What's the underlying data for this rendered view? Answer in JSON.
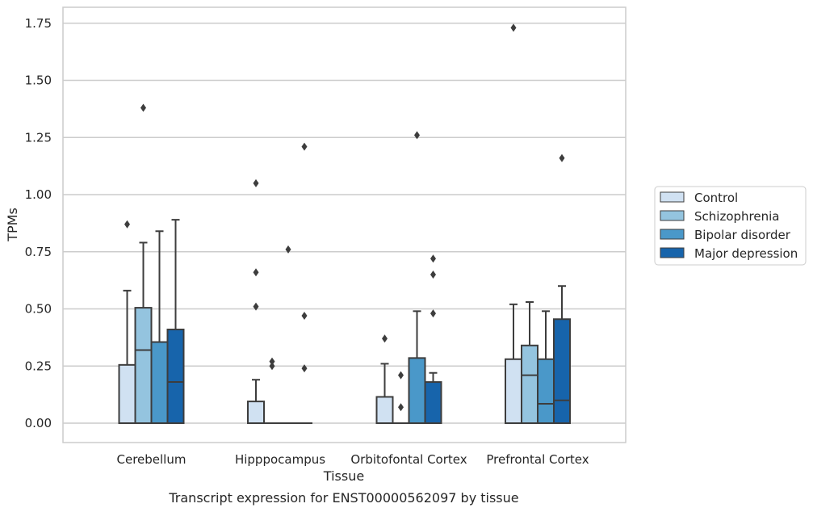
{
  "chart_data": {
    "type": "boxplot",
    "caption": "Transcript expression for ENST00000562097 by tissue",
    "xlabel": "Tissue",
    "ylabel": "TPMs",
    "ylim": [
      -0.085,
      1.82
    ],
    "yticks": [
      0.0,
      0.25,
      0.5,
      0.75,
      1.0,
      1.25,
      1.5,
      1.75
    ],
    "ytick_labels": [
      "0.00",
      "0.25",
      "0.50",
      "0.75",
      "1.00",
      "1.25",
      "1.50",
      "1.75"
    ],
    "grid": "horizontal",
    "legend_position": "right-center",
    "categories": [
      "Cerebellum",
      "Hipppocampus",
      "Orbitofontal Cortex",
      "Prefrontal Cortex"
    ],
    "series": [
      {
        "name": "Control",
        "color": "#d0e1f2"
      },
      {
        "name": "Schizophrenia",
        "color": "#94c4df"
      },
      {
        "name": "Bipolar disorder",
        "color": "#4a98c9"
      },
      {
        "name": "Major depression",
        "color": "#1764ab"
      }
    ],
    "boxes": [
      {
        "category": 0,
        "series": 0,
        "q1": 0.0,
        "median": 0.0,
        "q3": 0.255,
        "whisker_low": 0.0,
        "whisker_high": 0.58,
        "outliers": [
          0.87
        ]
      },
      {
        "category": 0,
        "series": 1,
        "q1": 0.0,
        "median": 0.32,
        "q3": 0.505,
        "whisker_low": 0.0,
        "whisker_high": 0.79,
        "outliers": [
          1.38
        ]
      },
      {
        "category": 0,
        "series": 2,
        "q1": 0.0,
        "median": 0.0,
        "q3": 0.355,
        "whisker_low": 0.0,
        "whisker_high": 0.84,
        "outliers": []
      },
      {
        "category": 0,
        "series": 3,
        "q1": 0.0,
        "median": 0.18,
        "q3": 0.41,
        "whisker_low": 0.0,
        "whisker_high": 0.89,
        "outliers": []
      },
      {
        "category": 1,
        "series": 0,
        "q1": 0.0,
        "median": 0.0,
        "q3": 0.095,
        "whisker_low": 0.0,
        "whisker_high": 0.19,
        "outliers": [
          1.05,
          0.66,
          0.51
        ]
      },
      {
        "category": 1,
        "series": 1,
        "q1": 0.0,
        "median": 0.0,
        "q3": 0.0,
        "whisker_low": 0.0,
        "whisker_high": 0.0,
        "outliers": [
          0.27,
          0.25
        ]
      },
      {
        "category": 1,
        "series": 2,
        "q1": 0.0,
        "median": 0.0,
        "q3": 0.0,
        "whisker_low": 0.0,
        "whisker_high": 0.0,
        "outliers": [
          0.76
        ]
      },
      {
        "category": 1,
        "series": 3,
        "q1": 0.0,
        "median": 0.0,
        "q3": 0.0,
        "whisker_low": 0.0,
        "whisker_high": 0.0,
        "outliers": [
          1.21,
          0.47,
          0.24
        ]
      },
      {
        "category": 2,
        "series": 0,
        "q1": 0.0,
        "median": 0.0,
        "q3": 0.115,
        "whisker_low": 0.0,
        "whisker_high": 0.26,
        "outliers": [
          0.37
        ]
      },
      {
        "category": 2,
        "series": 1,
        "q1": 0.0,
        "median": 0.0,
        "q3": 0.0,
        "whisker_low": 0.0,
        "whisker_high": 0.0,
        "outliers": [
          0.21,
          0.07
        ]
      },
      {
        "category": 2,
        "series": 2,
        "q1": 0.0,
        "median": 0.0,
        "q3": 0.285,
        "whisker_low": 0.0,
        "whisker_high": 0.49,
        "outliers": [
          1.26
        ]
      },
      {
        "category": 2,
        "series": 3,
        "q1": 0.0,
        "median": 0.0,
        "q3": 0.18,
        "whisker_low": 0.0,
        "whisker_high": 0.22,
        "outliers": [
          0.72,
          0.65,
          0.48
        ]
      },
      {
        "category": 3,
        "series": 0,
        "q1": 0.0,
        "median": 0.0,
        "q3": 0.28,
        "whisker_low": 0.0,
        "whisker_high": 0.52,
        "outliers": [
          1.73
        ]
      },
      {
        "category": 3,
        "series": 1,
        "q1": 0.0,
        "median": 0.21,
        "q3": 0.34,
        "whisker_low": 0.0,
        "whisker_high": 0.53,
        "outliers": []
      },
      {
        "category": 3,
        "series": 2,
        "q1": 0.0,
        "median": 0.085,
        "q3": 0.28,
        "whisker_low": 0.0,
        "whisker_high": 0.49,
        "outliers": []
      },
      {
        "category": 3,
        "series": 3,
        "q1": 0.0,
        "median": 0.1,
        "q3": 0.455,
        "whisker_low": 0.0,
        "whisker_high": 0.6,
        "outliers": [
          1.16
        ]
      }
    ]
  }
}
